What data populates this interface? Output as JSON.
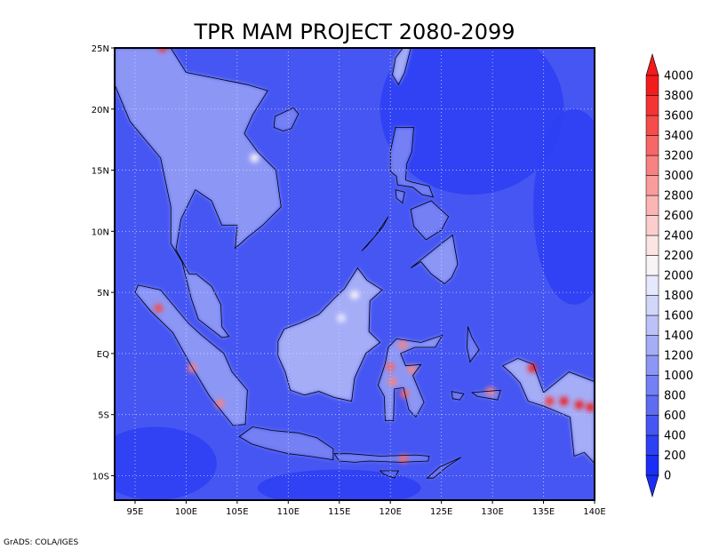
{
  "chart_data": {
    "type": "heatmap",
    "title": "TPR MAM PROJECT 2080-2099",
    "footer": "GrADS: COLA/IGES",
    "x": {
      "min": 93,
      "max": 140,
      "ticks": [
        95,
        100,
        105,
        110,
        115,
        120,
        125,
        130,
        135,
        140
      ],
      "tick_labels": [
        "95E",
        "100E",
        "105E",
        "110E",
        "115E",
        "120E",
        "125E",
        "130E",
        "135E",
        "140E"
      ]
    },
    "y": {
      "min": -12,
      "max": 25,
      "ticks": [
        -10,
        -5,
        0,
        5,
        10,
        15,
        20,
        25
      ],
      "tick_labels": [
        "10S",
        "5S",
        "EQ",
        "5N",
        "10N",
        "15N",
        "20N",
        "25N"
      ]
    },
    "grid": true,
    "colorbar": {
      "position": "right",
      "levels": [
        0,
        200,
        400,
        600,
        800,
        1000,
        1200,
        1400,
        1600,
        1800,
        2000,
        2200,
        2400,
        2600,
        2800,
        3000,
        3200,
        3400,
        3600,
        3800,
        4000
      ],
      "colors": [
        "#1a2ef5",
        "#2d40f3",
        "#4656f2",
        "#5e6cf2",
        "#7480f4",
        "#8c97f5",
        "#a5adf7",
        "#bcc2f9",
        "#d2d6fb",
        "#e6e8fd",
        "#f8f4f6",
        "#fde4e4",
        "#fccdcd",
        "#fbb5b5",
        "#fa9c9c",
        "#f88282",
        "#f76767",
        "#f54c4c",
        "#f43434",
        "#f21c1c"
      ],
      "below_color": "#1a2ef5",
      "above_color": "#f21c1c"
    },
    "background_value": 500,
    "ocean_value": 350,
    "land_regions": [
      {
        "name": "Indochina",
        "value": 1000,
        "lonlat": [
          [
            98.5,
            25
          ],
          [
            100,
            23
          ],
          [
            103,
            22.5
          ],
          [
            106,
            22
          ],
          [
            108,
            21.5
          ],
          [
            106.5,
            19.5
          ],
          [
            105.7,
            18
          ],
          [
            107,
            16.5
          ],
          [
            108.8,
            15
          ],
          [
            109.3,
            12
          ],
          [
            107.5,
            10.5
          ],
          [
            106,
            9.5
          ],
          [
            104.8,
            8.6
          ],
          [
            105,
            10.5
          ],
          [
            103.5,
            10.5
          ],
          [
            102.5,
            12.5
          ],
          [
            100.9,
            13.4
          ],
          [
            99.5,
            11
          ],
          [
            99,
            8.5
          ],
          [
            100.3,
            6.5
          ],
          [
            101,
            6.5
          ],
          [
            102.5,
            5.5
          ],
          [
            103.4,
            4
          ],
          [
            103.5,
            2.2
          ],
          [
            104.2,
            1.4
          ],
          [
            103.5,
            1.3
          ],
          [
            101.2,
            2.8
          ],
          [
            100.5,
            4.5
          ],
          [
            99.6,
            7.5
          ],
          [
            98.5,
            9
          ],
          [
            98.5,
            12
          ],
          [
            97.5,
            16
          ],
          [
            96,
            17.5
          ],
          [
            94.5,
            19
          ],
          [
            93,
            22
          ],
          [
            93,
            25
          ]
        ]
      },
      {
        "name": "Sumatra",
        "value": 1000,
        "lonlat": [
          [
            95.3,
            5.6
          ],
          [
            97.5,
            5.2
          ],
          [
            100.2,
            2.5
          ],
          [
            101.5,
            1.5
          ],
          [
            103.7,
            0
          ],
          [
            104.5,
            -1.5
          ],
          [
            106,
            -3
          ],
          [
            105.8,
            -5.8
          ],
          [
            104.6,
            -5.9
          ],
          [
            102.3,
            -3.5
          ],
          [
            100.5,
            -1
          ],
          [
            98.7,
            1.7
          ],
          [
            96.5,
            3.5
          ],
          [
            95,
            5
          ]
        ]
      },
      {
        "name": "Borneo",
        "value": 1200,
        "lonlat": [
          [
            109,
            1
          ],
          [
            109.6,
            2
          ],
          [
            111.2,
            2.5
          ],
          [
            113,
            3.2
          ],
          [
            114.5,
            4.5
          ],
          [
            115.5,
            5.3
          ],
          [
            116.8,
            7
          ],
          [
            117.7,
            6
          ],
          [
            119.2,
            5.2
          ],
          [
            118,
            4.3
          ],
          [
            117.9,
            1.8
          ],
          [
            119,
            0.9
          ],
          [
            117.6,
            0
          ],
          [
            116.5,
            -2
          ],
          [
            116.2,
            -3.9
          ],
          [
            114.5,
            -3.6
          ],
          [
            113,
            -3.1
          ],
          [
            111.6,
            -3.4
          ],
          [
            110.2,
            -3
          ],
          [
            109.7,
            -1.5
          ],
          [
            109,
            -0.2
          ]
        ]
      },
      {
        "name": "Java",
        "value": 800,
        "lonlat": [
          [
            105.2,
            -6.8
          ],
          [
            106.5,
            -6
          ],
          [
            108.5,
            -6.3
          ],
          [
            111,
            -6.5
          ],
          [
            112.8,
            -6.9
          ],
          [
            114.4,
            -7.8
          ],
          [
            114.4,
            -8.7
          ],
          [
            112,
            -8.4
          ],
          [
            110,
            -8.2
          ],
          [
            108,
            -7.8
          ],
          [
            106.4,
            -7.4
          ]
        ]
      },
      {
        "name": "Sulawesi",
        "value": 1000,
        "lonlat": [
          [
            119.5,
            -5.5
          ],
          [
            119.4,
            -3.5
          ],
          [
            118.8,
            -2.6
          ],
          [
            119.5,
            -0.8
          ],
          [
            119.8,
            0.5
          ],
          [
            120.6,
            1.2
          ],
          [
            123,
            0.9
          ],
          [
            125.1,
            1.5
          ],
          [
            124.4,
            0.5
          ],
          [
            122.4,
            0.5
          ],
          [
            121,
            0
          ],
          [
            121.5,
            -1
          ],
          [
            123,
            -0.9
          ],
          [
            122.2,
            -1.8
          ],
          [
            123.3,
            -4
          ],
          [
            122.5,
            -5.2
          ],
          [
            121.8,
            -4.6
          ],
          [
            121.3,
            -2.8
          ],
          [
            120.4,
            -2.9
          ],
          [
            120.3,
            -5.5
          ]
        ]
      },
      {
        "name": "Luzon",
        "value": 900,
        "lonlat": [
          [
            120.5,
            18.5
          ],
          [
            122.3,
            18.5
          ],
          [
            122.1,
            16.5
          ],
          [
            121.6,
            15.5
          ],
          [
            121.5,
            14.2
          ],
          [
            122.2,
            14
          ],
          [
            123.8,
            13.7
          ],
          [
            124.2,
            12.8
          ],
          [
            123.1,
            13
          ],
          [
            122.2,
            13.6
          ],
          [
            120.7,
            13.8
          ],
          [
            120.6,
            14.5
          ],
          [
            120,
            14.9
          ],
          [
            120,
            16.5
          ]
        ]
      },
      {
        "name": "Mindanao",
        "value": 1000,
        "lonlat": [
          [
            122,
            7
          ],
          [
            123.5,
            8
          ],
          [
            125,
            9
          ],
          [
            126.1,
            9.7
          ],
          [
            126.6,
            7.3
          ],
          [
            126,
            6.2
          ],
          [
            125.3,
            5.7
          ],
          [
            124,
            6.5
          ],
          [
            123,
            7.5
          ]
        ]
      },
      {
        "name": "Visayas",
        "value": 900,
        "lonlat": [
          [
            122,
            11.8
          ],
          [
            124,
            12.5
          ],
          [
            125.7,
            11.2
          ],
          [
            125,
            10.1
          ],
          [
            123.5,
            9.3
          ],
          [
            122.3,
            10.4
          ]
        ]
      },
      {
        "name": "Palawan",
        "value": 800,
        "lonlat": [
          [
            117.2,
            8.4
          ],
          [
            118.5,
            9.6
          ],
          [
            119.8,
            11.2
          ],
          [
            119.3,
            10.4
          ],
          [
            117.7,
            8.8
          ]
        ]
      },
      {
        "name": "Mindoro",
        "value": 900,
        "lonlat": [
          [
            120.5,
            13.4
          ],
          [
            121.4,
            13.2
          ],
          [
            121.2,
            12.3
          ],
          [
            120.6,
            12.7
          ]
        ]
      },
      {
        "name": "Taiwan",
        "value": 1200,
        "lonlat": [
          [
            121.5,
            25.3
          ],
          [
            122,
            25
          ],
          [
            121.4,
            23
          ],
          [
            120.8,
            22
          ],
          [
            120.2,
            22.8
          ],
          [
            120.5,
            24.2
          ]
        ]
      },
      {
        "name": "Hainan",
        "value": 800,
        "lonlat": [
          [
            108.7,
            19.4
          ],
          [
            110.5,
            20.1
          ],
          [
            111,
            19.6
          ],
          [
            110.3,
            18.4
          ],
          [
            109.5,
            18.2
          ],
          [
            108.6,
            18.5
          ]
        ]
      },
      {
        "name": "New Guinea",
        "value": 1200,
        "lonlat": [
          [
            131,
            -1
          ],
          [
            132.5,
            -0.4
          ],
          [
            134,
            -0.9
          ],
          [
            135,
            -3.2
          ],
          [
            137.5,
            -1.5
          ],
          [
            140,
            -2.3
          ],
          [
            140,
            -9
          ],
          [
            139,
            -8.1
          ],
          [
            138,
            -8.4
          ],
          [
            137.6,
            -5.2
          ],
          [
            135,
            -4.3
          ],
          [
            133.5,
            -3.9
          ],
          [
            132.7,
            -2.4
          ],
          [
            131.8,
            -1.6
          ]
        ]
      },
      {
        "name": "Halmahera",
        "value": 900,
        "lonlat": [
          [
            127.6,
            2.2
          ],
          [
            128,
            1.3
          ],
          [
            128.7,
            0.3
          ],
          [
            127.8,
            -0.7
          ],
          [
            127.5,
            0.5
          ]
        ]
      },
      {
        "name": "Seram",
        "value": 900,
        "lonlat": [
          [
            128,
            -3.2
          ],
          [
            130.8,
            -3
          ],
          [
            130.5,
            -3.8
          ],
          [
            128.5,
            -3.5
          ]
        ]
      },
      {
        "name": "Buru",
        "value": 900,
        "lonlat": [
          [
            126,
            -3.1
          ],
          [
            127.2,
            -3.3
          ],
          [
            126.8,
            -3.8
          ],
          [
            126.1,
            -3.7
          ]
        ]
      },
      {
        "name": "Lesser Sunda",
        "value": 800,
        "lonlat": [
          [
            114.5,
            -8.2
          ],
          [
            116,
            -8.2
          ],
          [
            119,
            -8.4
          ],
          [
            122.5,
            -8.3
          ],
          [
            123.8,
            -8.4
          ],
          [
            123.7,
            -8.8
          ],
          [
            121,
            -8.9
          ],
          [
            118,
            -8.8
          ],
          [
            116.5,
            -8.9
          ],
          [
            115,
            -8.8
          ]
        ]
      },
      {
        "name": "Timor",
        "value": 800,
        "lonlat": [
          [
            123.6,
            -10.2
          ],
          [
            124.8,
            -9.3
          ],
          [
            126.9,
            -8.5
          ],
          [
            125.5,
            -9.3
          ],
          [
            124.2,
            -10.2
          ]
        ]
      },
      {
        "name": "Sumba",
        "value": 700,
        "lonlat": [
          [
            119,
            -9.6
          ],
          [
            120.8,
            -9.6
          ],
          [
            120.4,
            -10.2
          ],
          [
            119.4,
            -9.9
          ]
        ]
      }
    ],
    "peaks": [
      {
        "lon": 97.7,
        "lat": 25.0,
        "value": 3600
      },
      {
        "lon": 97.3,
        "lat": 3.7,
        "value": 3400
      },
      {
        "lon": 100.6,
        "lat": -1.2,
        "value": 3000
      },
      {
        "lon": 103.3,
        "lat": -4.1,
        "value": 3000
      },
      {
        "lon": 120.0,
        "lat": -1.1,
        "value": 3200
      },
      {
        "lon": 120.2,
        "lat": -2.3,
        "value": 3000
      },
      {
        "lon": 121.2,
        "lat": 0.7,
        "value": 3000
      },
      {
        "lon": 121.4,
        "lat": -3.3,
        "value": 3200
      },
      {
        "lon": 122.1,
        "lat": -1.3,
        "value": 3000
      },
      {
        "lon": 129.8,
        "lat": -3.1,
        "value": 3000
      },
      {
        "lon": 133.9,
        "lat": -1.2,
        "value": 3800
      },
      {
        "lon": 135.6,
        "lat": -3.9,
        "value": 3600
      },
      {
        "lon": 137.0,
        "lat": -3.9,
        "value": 4000
      },
      {
        "lon": 138.5,
        "lat": -4.2,
        "value": 4000
      },
      {
        "lon": 139.6,
        "lat": -4.4,
        "value": 4000
      },
      {
        "lon": 121.3,
        "lat": -8.6,
        "value": 3200
      },
      {
        "lon": 115.2,
        "lat": 2.9,
        "value": 1800
      },
      {
        "lon": 116.5,
        "lat": 4.8,
        "value": 2000
      },
      {
        "lon": 106.7,
        "lat": 16.0,
        "value": 2000
      }
    ]
  }
}
